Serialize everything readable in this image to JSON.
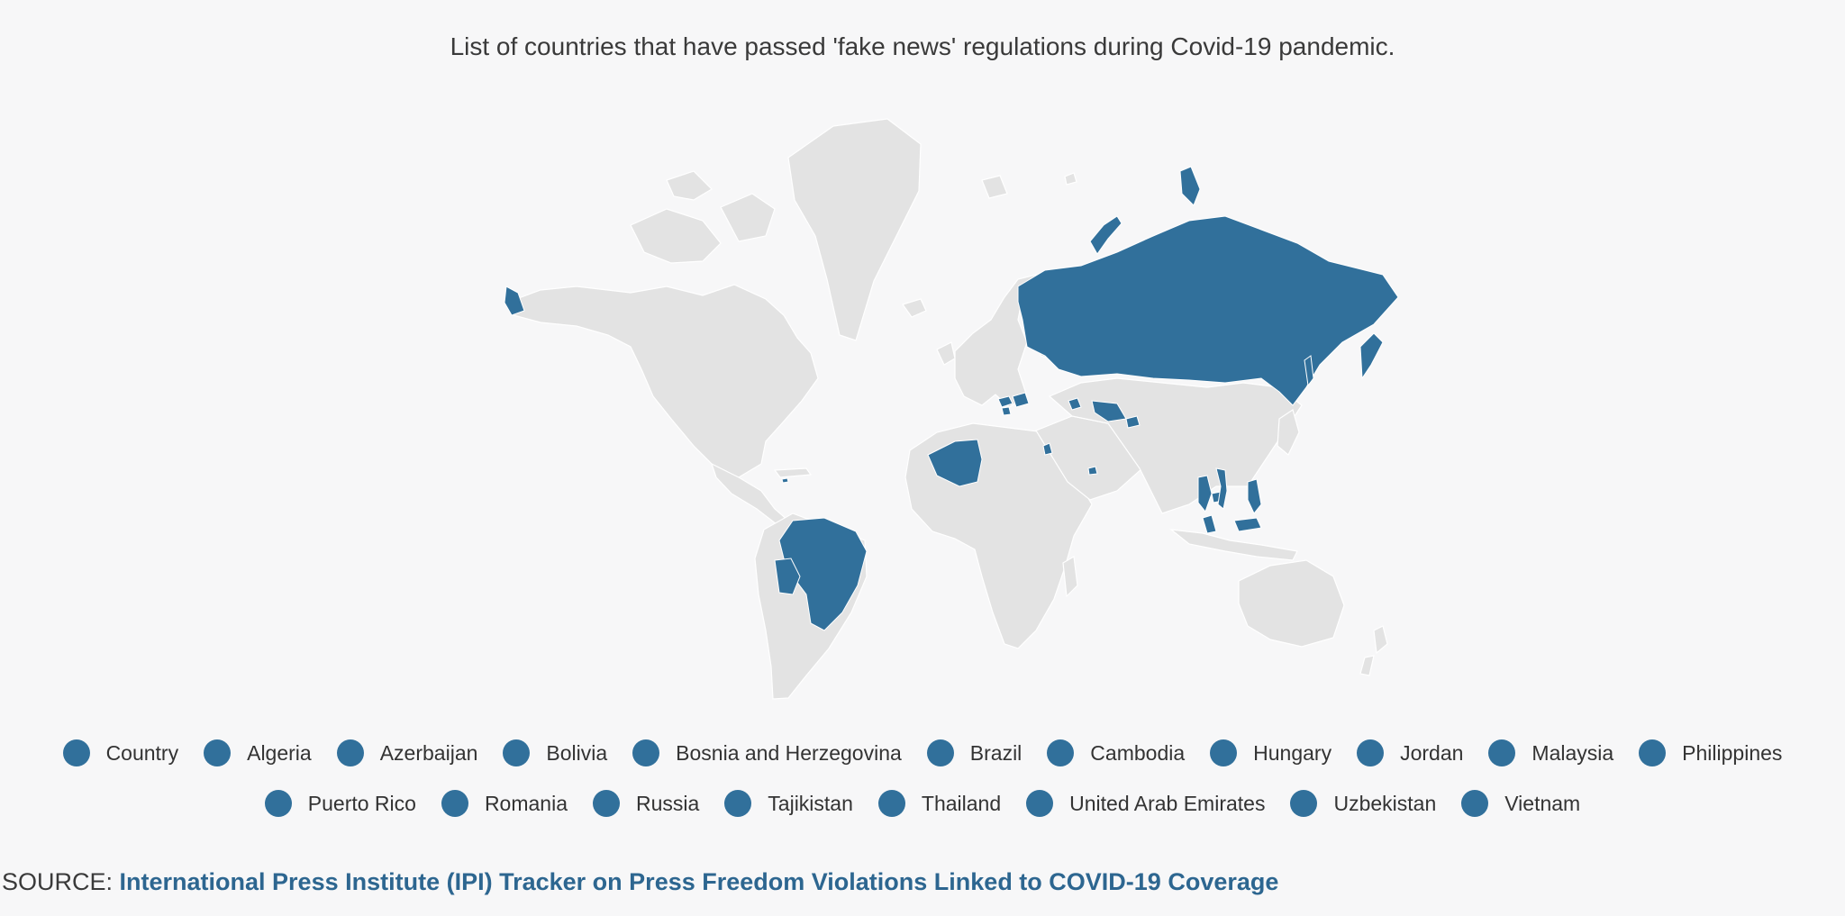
{
  "title": "List of countries that have passed 'fake news' regulations during Covid-19 pandemic.",
  "colors": {
    "highlight": "#31709b",
    "land": "#e3e3e3",
    "background": "#f7f7f8",
    "border": "#ffffff"
  },
  "legend": {
    "row1": [
      "Country",
      "Algeria",
      "Azerbaijan",
      "Bolivia",
      "Bosnia and Herzegovina",
      "Brazil",
      "Cambodia",
      "Hungary",
      "Jordan",
      "Malaysia",
      "Philippines"
    ],
    "row2": [
      "Puerto Rico",
      "Romania",
      "Russia",
      "Tajikistan",
      "Thailand",
      "United Arab Emirates",
      "Uzbekistan",
      "Vietnam"
    ]
  },
  "source": {
    "label": "SOURCE: ",
    "link_text": "International Press Institute (IPI) Tracker on Press Freedom Violations Linked to COVID-19 Coverage"
  }
}
